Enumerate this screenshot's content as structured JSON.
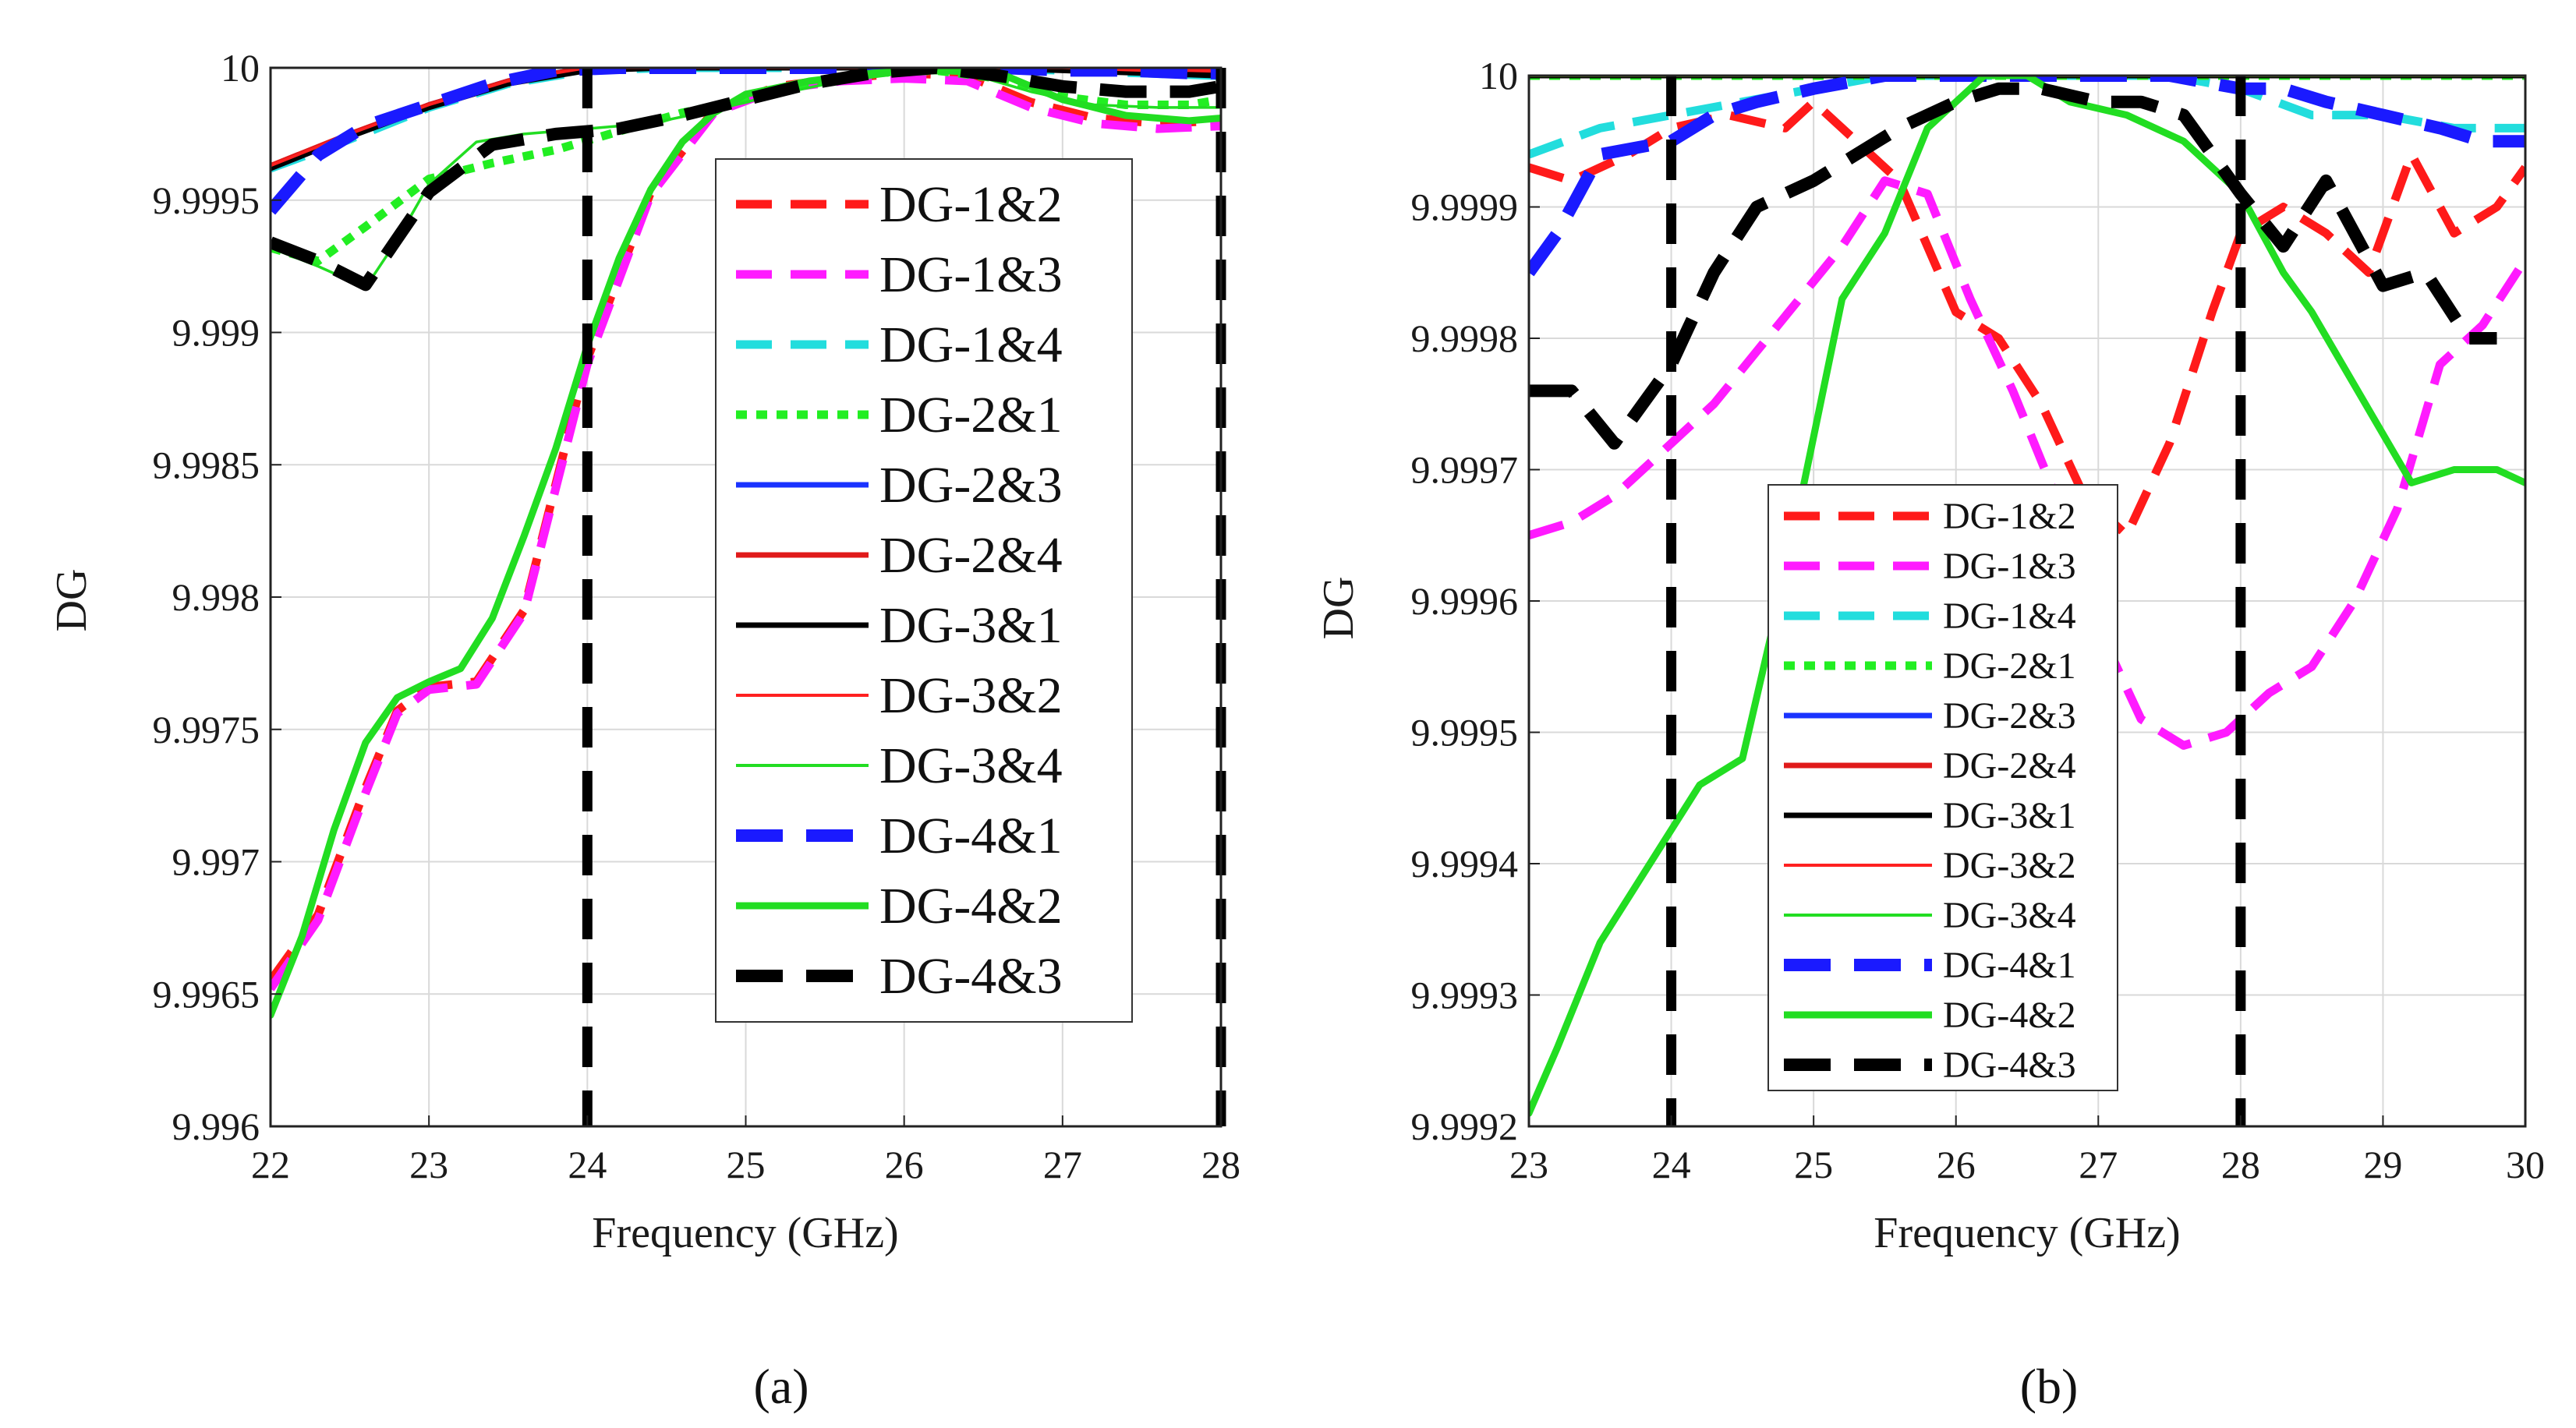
{
  "chart_data": [
    {
      "type": "line",
      "panel_label": "(a)",
      "xlabel": "Frequency (GHz)",
      "ylabel": "DG",
      "xlim": [
        22,
        28
      ],
      "ylim": [
        9.996,
        10
      ],
      "x_ticks": [
        22,
        23,
        24,
        25,
        26,
        27,
        28
      ],
      "y_ticks": [
        9.996,
        9.9965,
        9.997,
        9.9975,
        9.998,
        9.9985,
        9.999,
        9.9995,
        10
      ],
      "y_tick_labels": [
        "9.996",
        "9.9965",
        "9.997",
        "9.9975",
        "9.998",
        "9.9985",
        "9.999",
        "9.9995",
        "10"
      ],
      "grid": true,
      "legend_position": "center-right",
      "vlines": [
        24,
        28
      ],
      "series": [
        {
          "name": "DG-1&2",
          "color": "#ff1a1a",
          "style": "dashed-thick",
          "x": [
            22,
            22.3,
            22.6,
            22.8,
            23,
            23.3,
            23.6,
            24,
            24.4,
            24.8,
            25.2,
            25.6,
            26,
            26.4,
            26.8,
            27.2,
            27.6,
            28
          ],
          "y": [
            9.99655,
            9.9968,
            9.99728,
            9.99757,
            9.99766,
            9.99768,
            9.99795,
            9.9989,
            9.99953,
            9.99984,
            9.99993,
            9.99996,
            9.99998,
            9.99997,
            9.99987,
            9.99981,
            9.99979,
            9.9998
          ]
        },
        {
          "name": "DG-1&3",
          "color": "#ff1aff",
          "style": "dashed-thick",
          "x": [
            22,
            22.3,
            22.6,
            22.8,
            23,
            23.3,
            23.6,
            24,
            24.4,
            24.8,
            25.2,
            25.6,
            26,
            26.4,
            26.8,
            27.2,
            27.6,
            28
          ],
          "y": [
            9.99652,
            9.99678,
            9.99726,
            9.99756,
            9.99765,
            9.99767,
            9.99794,
            9.99888,
            9.99952,
            9.99983,
            9.99992,
            9.99995,
            9.99996,
            9.99995,
            9.99985,
            9.99979,
            9.99977,
            9.99978
          ]
        },
        {
          "name": "DG-1&4",
          "color": "#22dddd",
          "style": "dashed-thick",
          "x": [
            22,
            22.5,
            23,
            23.5,
            24,
            24.5,
            25,
            25.5,
            26,
            26.5,
            27,
            27.5,
            28
          ],
          "y": [
            9.99962,
            9.99973,
            9.99985,
            9.99994,
            9.99999,
            10,
            10,
            10,
            10,
            10,
            9.99999,
            9.99998,
            9.99997
          ]
        },
        {
          "name": "DG-2&1",
          "color": "#22ee22",
          "style": "dotted-thick",
          "x": [
            22,
            22.3,
            22.6,
            23,
            23.4,
            23.8,
            24.2,
            24.6,
            25,
            25.4,
            25.8,
            26.2,
            26.6,
            27,
            27.4,
            27.8,
            28
          ],
          "y": [
            9.99932,
            9.99927,
            9.9994,
            9.99958,
            9.99964,
            9.99969,
            9.99976,
            9.99983,
            9.99988,
            9.99994,
            9.99998,
            9.99999,
            9.99996,
            9.99989,
            9.99986,
            9.99986,
            9.99988
          ]
        },
        {
          "name": "DG-2&3",
          "color": "#1a33ff",
          "style": "solid-medium",
          "x": [
            22,
            22.5,
            23,
            23.5,
            24,
            24.5,
            25,
            25.5,
            26,
            26.5,
            27,
            27.5,
            28
          ],
          "y": [
            9.99962,
            9.99974,
            9.99986,
            9.99995,
            10,
            10,
            10,
            10,
            10,
            10,
            10,
            9.99999,
            9.99999
          ]
        },
        {
          "name": "DG-2&4",
          "color": "#e01a1a",
          "style": "solid-medium",
          "x": [
            22,
            22.5,
            23,
            23.5,
            24,
            24.5,
            25,
            25.5,
            26,
            26.5,
            27,
            27.5,
            28
          ],
          "y": [
            9.99963,
            9.99975,
            9.99986,
            9.99995,
            10,
            10,
            10,
            10,
            10,
            10,
            10,
            9.99999,
            9.99999
          ]
        },
        {
          "name": "DG-3&1",
          "color": "#000000",
          "style": "solid-medium",
          "x": [
            22,
            22.5,
            23,
            23.5,
            24,
            24.5,
            25,
            25.5,
            26,
            26.5,
            27,
            27.5,
            28
          ],
          "y": [
            9.99962,
            9.99974,
            9.99985,
            9.99994,
            9.99999,
            10,
            10,
            10,
            10,
            10,
            9.99999,
            9.99998,
            9.99997
          ]
        },
        {
          "name": "DG-3&2",
          "color": "#ff2020",
          "style": "solid-thin",
          "x": [
            22,
            22.5,
            23,
            23.5,
            24,
            24.5,
            25,
            25.5,
            26,
            26.5,
            27,
            27.5,
            28
          ],
          "y": [
            9.99963,
            9.99975,
            9.99986,
            9.99995,
            10,
            10,
            10,
            10,
            10,
            10,
            10,
            9.99999,
            9.99999
          ]
        },
        {
          "name": "DG-3&4",
          "color": "#22dd22",
          "style": "solid-thin",
          "x": [
            22,
            22.3,
            22.6,
            22.8,
            23,
            23.3,
            23.6,
            24,
            24.4,
            24.8,
            25.2,
            25.6,
            26,
            26.4,
            26.8,
            27.2,
            27.6,
            28
          ],
          "y": [
            9.99932,
            9.99925,
            9.99917,
            9.99935,
            9.99956,
            9.99972,
            9.99975,
            9.99977,
            9.99979,
            9.99984,
            9.9999,
            9.99995,
            9.99998,
            9.99998,
            9.99991,
            9.99986,
            9.99985,
            9.99985
          ]
        },
        {
          "name": "DG-4&1",
          "color": "#1a1aff",
          "style": "dashed-xthick",
          "x": [
            22,
            22.3,
            22.6,
            23,
            23.4,
            23.8,
            24.2,
            24.6,
            25,
            25.4,
            25.8,
            26.2,
            26.6,
            27,
            27.4,
            27.8,
            28
          ],
          "y": [
            9.99946,
            9.99967,
            9.99978,
            9.99986,
            9.99994,
            9.99999,
            10,
            10,
            10,
            10,
            10,
            10,
            10,
            9.99999,
            9.99999,
            9.99998,
            9.99998
          ]
        },
        {
          "name": "DG-4&2",
          "color": "#22dd22",
          "style": "solid-thick",
          "x": [
            22,
            22.2,
            22.4,
            22.6,
            22.8,
            23,
            23.2,
            23.4,
            23.6,
            23.8,
            24,
            24.2,
            24.4,
            24.6,
            24.8,
            25,
            25.4,
            25.8,
            26.2,
            26.6,
            27,
            27.4,
            27.8,
            28
          ],
          "y": [
            9.99642,
            9.99672,
            9.99712,
            9.99745,
            9.99762,
            9.99768,
            9.99773,
            9.99792,
            9.99823,
            9.99856,
            9.99895,
            9.99928,
            9.99954,
            9.99972,
            9.99983,
            9.9999,
            9.99995,
            9.99998,
            9.99999,
            9.99998,
            9.99988,
            9.99982,
            9.9998,
            9.99981
          ]
        },
        {
          "name": "DG-4&3",
          "color": "#000000",
          "style": "dashed-xthick",
          "x": [
            22,
            22.3,
            22.6,
            23,
            23.4,
            23.8,
            24.2,
            24.6,
            25,
            25.4,
            25.8,
            26.2,
            26.6,
            27,
            27.4,
            27.8,
            28
          ],
          "y": [
            9.99934,
            9.99927,
            9.99918,
            9.99953,
            9.99971,
            9.99975,
            9.99977,
            9.99982,
            9.99988,
            9.99994,
            9.99998,
            10,
            9.99997,
            9.99993,
            9.99991,
            9.99991,
            9.99993
          ]
        }
      ]
    },
    {
      "type": "line",
      "panel_label": "(b)",
      "xlabel": "Frequency (GHz)",
      "ylabel": "DG",
      "xlim": [
        23,
        30
      ],
      "ylim": [
        9.9992,
        10
      ],
      "x_ticks": [
        23,
        24,
        25,
        26,
        27,
        28,
        29,
        30
      ],
      "y_ticks": [
        9.9992,
        9.9993,
        9.9994,
        9.9995,
        9.9996,
        9.9997,
        9.9998,
        9.9999,
        10
      ],
      "y_tick_labels": [
        "9.9992",
        "9.9993",
        "9.9994",
        "9.9995",
        "9.9996",
        "9.9997",
        "9.9998",
        "9.9999",
        "10"
      ],
      "grid": true,
      "legend_position": "bottom-center",
      "vlines": [
        24,
        28
      ],
      "series": [
        {
          "name": "DG-1&2",
          "color": "#ff1a1a",
          "style": "dashed-thick",
          "x": [
            23,
            23.3,
            23.7,
            24,
            24.4,
            24.8,
            25,
            25.3,
            25.6,
            26,
            26.3,
            26.6,
            26.9,
            27.2,
            27.5,
            27.8,
            28,
            28.3,
            28.6,
            28.9,
            29.2,
            29.5,
            29.8,
            30
          ],
          "y": [
            9.99993,
            9.99992,
            9.99994,
            9.99996,
            9.99997,
            9.99996,
            9.99998,
            9.99995,
            9.99992,
            9.99982,
            9.9998,
            9.99975,
            9.99968,
            9.99965,
            9.99972,
            9.99982,
            9.99988,
            9.9999,
            9.99988,
            9.99985,
            9.99994,
            9.99988,
            9.9999,
            9.99993
          ]
        },
        {
          "name": "DG-1&3",
          "color": "#ff1aff",
          "style": "dashed-thick",
          "x": [
            23,
            23.3,
            23.6,
            24,
            24.3,
            24.6,
            24.9,
            25.2,
            25.5,
            25.8,
            26.1,
            26.4,
            26.7,
            27,
            27.3,
            27.6,
            27.9,
            28.2,
            28.5,
            28.8,
            29.1,
            29.4,
            29.7,
            30
          ],
          "y": [
            9.99965,
            9.99966,
            9.99968,
            9.99972,
            9.99975,
            9.99979,
            9.99983,
            9.99987,
            9.99992,
            9.99991,
            9.99983,
            9.99976,
            9.99968,
            9.99958,
            9.99951,
            9.99949,
            9.9995,
            9.99953,
            9.99955,
            9.9996,
            9.99967,
            9.99978,
            9.99981,
            9.99986
          ]
        },
        {
          "name": "DG-1&4",
          "color": "#22dddd",
          "style": "dashed-thick",
          "x": [
            23,
            23.5,
            24,
            24.5,
            25,
            25.5,
            26,
            26.5,
            27,
            27.5,
            28,
            28.5,
            29,
            29.5,
            30
          ],
          "y": [
            9.99994,
            9.99996,
            9.99997,
            9.99998,
            9.99999,
            10,
            10,
            10,
            10,
            10,
            9.99999,
            9.99997,
            9.99997,
            9.99996,
            9.99996
          ]
        },
        {
          "name": "DG-2&1",
          "color": "#22ee22",
          "style": "dotted-thick",
          "x": [
            23,
            24,
            25,
            26,
            27,
            28,
            29,
            30
          ],
          "y": [
            10,
            10,
            10,
            10,
            10,
            10,
            10,
            10
          ]
        },
        {
          "name": "DG-2&3",
          "color": "#1a33ff",
          "style": "solid-medium",
          "x": [
            23,
            24,
            25,
            26,
            27,
            28,
            29,
            30
          ],
          "y": [
            10,
            10,
            10,
            10,
            10,
            10,
            10,
            10
          ]
        },
        {
          "name": "DG-2&4",
          "color": "#e01a1a",
          "style": "solid-medium",
          "x": [
            23,
            24,
            25,
            26,
            27,
            28,
            29,
            30
          ],
          "y": [
            10,
            10,
            10,
            10,
            10,
            10,
            10,
            10
          ]
        },
        {
          "name": "DG-3&1",
          "color": "#000000",
          "style": "solid-medium",
          "x": [
            23,
            24,
            25,
            26,
            27,
            28,
            29,
            30
          ],
          "y": [
            10,
            10,
            10,
            10,
            10,
            10,
            10,
            10
          ]
        },
        {
          "name": "DG-3&2",
          "color": "#ff2020",
          "style": "solid-thin",
          "x": [
            23,
            24,
            25,
            26,
            27,
            28,
            29,
            30
          ],
          "y": [
            10,
            10,
            10,
            10,
            10,
            10,
            10,
            10
          ]
        },
        {
          "name": "DG-3&4",
          "color": "#22dd22",
          "style": "solid-thin",
          "x": [
            23,
            24,
            25,
            26,
            27,
            28,
            29,
            30
          ],
          "y": [
            10,
            10,
            10,
            10,
            10,
            10,
            10,
            10
          ]
        },
        {
          "name": "DG-4&1",
          "color": "#1a1aff",
          "style": "dashed-xthick",
          "x": [
            23,
            23.2,
            23.5,
            24,
            24.3,
            24.6,
            25,
            25.5,
            26,
            26.5,
            27,
            27.5,
            28,
            28.3,
            28.6,
            29,
            29.4,
            29.7,
            30
          ],
          "y": [
            9.99985,
            9.99988,
            9.99994,
            9.99995,
            9.99997,
            9.99998,
            9.99999,
            10,
            10,
            10,
            10,
            10,
            9.99999,
            9.99999,
            9.99998,
            9.99997,
            9.99996,
            9.99995,
            9.99995
          ]
        },
        {
          "name": "DG-4&2",
          "color": "#22dd22",
          "style": "solid-thick",
          "x": [
            23,
            23.2,
            23.5,
            24.2,
            24.5,
            24.8,
            25.2,
            25.5,
            25.8,
            26.2,
            26.5,
            26.8,
            27.2,
            27.6,
            28,
            28.3,
            28.5,
            29.2,
            29.5,
            29.8,
            30
          ],
          "y": [
            9.99921,
            9.99926,
            9.99934,
            9.99946,
            9.99948,
            9.99962,
            9.99983,
            9.99988,
            9.99996,
            10,
            10,
            9.99998,
            9.99997,
            9.99995,
            9.99991,
            9.99985,
            9.99982,
            9.99969,
            9.9997,
            9.9997,
            9.99969
          ]
        },
        {
          "name": "DG-4&3",
          "color": "#000000",
          "style": "dashed-xthick",
          "x": [
            23,
            23.3,
            23.6,
            24,
            24.3,
            24.6,
            25,
            25.3,
            25.6,
            26,
            26.3,
            26.6,
            27,
            27.3,
            27.6,
            28,
            28.3,
            28.6,
            29,
            29.3,
            29.6,
            29.8
          ],
          "y": [
            9.99976,
            9.99976,
            9.99972,
            9.99978,
            9.99985,
            9.9999,
            9.99992,
            9.99994,
            9.99996,
            9.99998,
            9.99999,
            9.99999,
            9.99998,
            9.99998,
            9.99997,
            9.99991,
            9.99987,
            9.99992,
            9.99984,
            9.99985,
            9.9998,
            9.9998
          ]
        }
      ]
    }
  ]
}
